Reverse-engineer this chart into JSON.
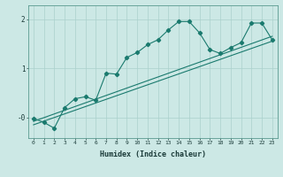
{
  "xlabel": "Humidex (Indice chaleur)",
  "background_color": "#cce8e5",
  "grid_color": "#aad0cc",
  "line_color": "#1a7a6e",
  "x_ticks": [
    0,
    1,
    2,
    3,
    4,
    5,
    6,
    7,
    8,
    9,
    10,
    11,
    12,
    13,
    14,
    15,
    16,
    17,
    18,
    19,
    20,
    21,
    22,
    23
  ],
  "xlim": [
    -0.5,
    23.5
  ],
  "ylim": [
    -0.42,
    2.28
  ],
  "series1_y": [
    -0.02,
    -0.1,
    -0.22,
    0.2,
    0.38,
    0.42,
    0.35,
    0.9,
    0.88,
    1.22,
    1.32,
    1.48,
    1.58,
    1.78,
    1.95,
    1.95,
    1.72,
    1.38,
    1.3,
    1.42,
    1.52,
    1.92,
    1.92,
    1.58
  ],
  "trend1_y_start": -0.15,
  "trend1_y_end": 1.55,
  "trend2_y_start": -0.08,
  "trend2_y_end": 1.65
}
